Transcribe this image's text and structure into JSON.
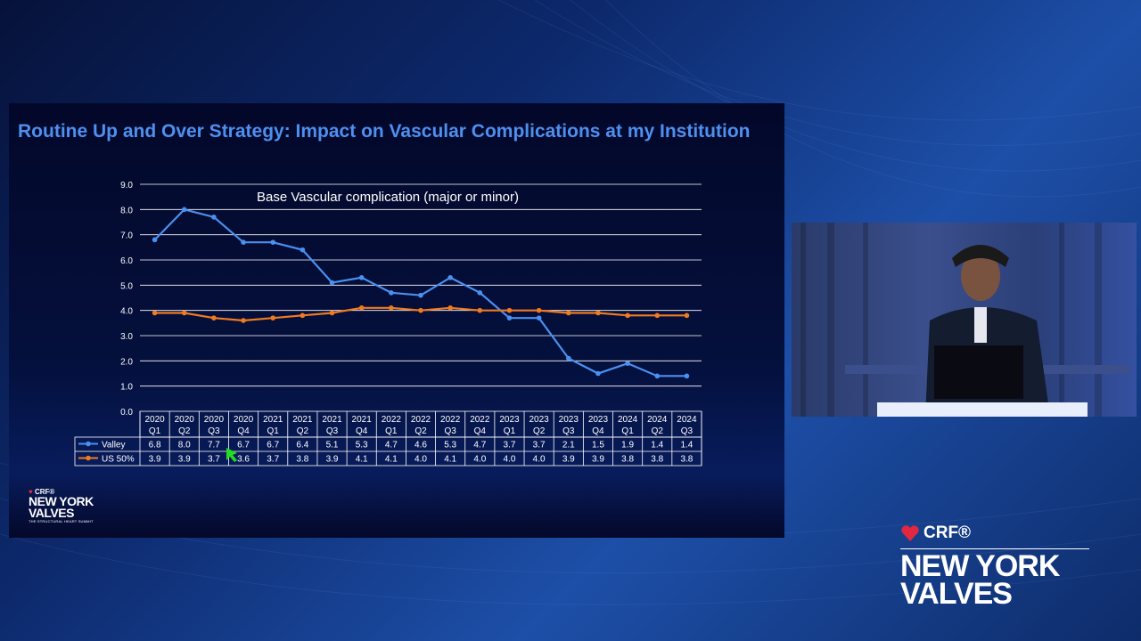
{
  "slide": {
    "title": "Routine Up and Over Strategy: Impact on Vascular Complications at my Institution"
  },
  "chart_data": {
    "type": "line",
    "title": "Base Vascular complication (major or minor)",
    "categories": [
      [
        "2020",
        "Q1"
      ],
      [
        "2020",
        "Q2"
      ],
      [
        "2020",
        "Q3"
      ],
      [
        "2020",
        "Q4"
      ],
      [
        "2021",
        "Q1"
      ],
      [
        "2021",
        "Q2"
      ],
      [
        "2021",
        "Q3"
      ],
      [
        "2021",
        "Q4"
      ],
      [
        "2022",
        "Q1"
      ],
      [
        "2022",
        "Q2"
      ],
      [
        "2022",
        "Q3"
      ],
      [
        "2022",
        "Q4"
      ],
      [
        "2023",
        "Q1"
      ],
      [
        "2023",
        "Q2"
      ],
      [
        "2023",
        "Q3"
      ],
      [
        "2023",
        "Q4"
      ],
      [
        "2024",
        "Q1"
      ],
      [
        "2024",
        "Q2"
      ],
      [
        "2024",
        "Q3"
      ]
    ],
    "ylim": [
      0,
      9
    ],
    "yticks": [
      "0.0",
      "1.0",
      "2.0",
      "3.0",
      "4.0",
      "5.0",
      "6.0",
      "7.0",
      "8.0",
      "9.0"
    ],
    "grid": true,
    "data_table": true,
    "series": [
      {
        "name": "Valley",
        "color": "#4a90f0",
        "values": [
          6.8,
          8.0,
          7.7,
          6.7,
          6.7,
          6.4,
          5.1,
          5.3,
          4.7,
          4.6,
          5.3,
          4.7,
          3.7,
          3.7,
          2.1,
          1.5,
          1.9,
          1.4,
          1.4
        ]
      },
      {
        "name": "US 50%",
        "color": "#f07a20",
        "values": [
          3.9,
          3.9,
          3.7,
          3.6,
          3.7,
          3.8,
          3.9,
          4.1,
          4.1,
          4.0,
          4.1,
          4.0,
          4.0,
          4.0,
          3.9,
          3.9,
          3.8,
          3.8,
          3.8
        ]
      }
    ]
  },
  "logo_small": {
    "crf": "CRF®",
    "line1": "NEW YORK",
    "line2": "VALVES",
    "tagline": "THE STRUCTURAL HEART SUMMIT"
  },
  "brand": {
    "crf": "CRF®",
    "line1": "NEW YORK",
    "line2": "VALVES"
  },
  "colors": {
    "title": "#4f8ff0",
    "slide_bg": "#03082a",
    "cursor": "#22dd22"
  }
}
